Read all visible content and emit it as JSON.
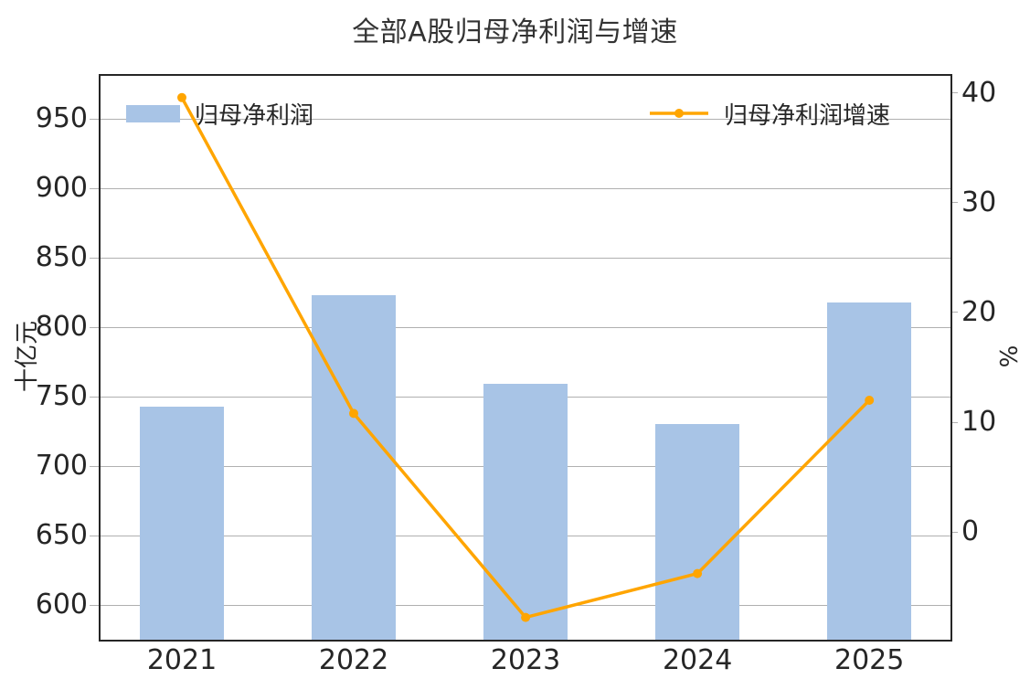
{
  "title": "全部A股归母净利润与增速",
  "chart_data": {
    "type": "bar",
    "subtype": "bar+line combo, dual y-axes",
    "categories": [
      "2021",
      "2022",
      "2023",
      "2024",
      "2025"
    ],
    "series": [
      {
        "name": "归母净利润",
        "type": "bar",
        "axis": "left",
        "unit": "十亿元",
        "values": [
          743,
          823,
          759,
          730,
          818
        ],
        "color": "#a8c4e6"
      },
      {
        "name": "归母净利润增速",
        "type": "line",
        "axis": "right",
        "unit": "%",
        "values": [
          39.6,
          10.8,
          -7.8,
          -3.8,
          12.0
        ],
        "color": "#ffa500"
      }
    ],
    "left_axis": {
      "label": "十亿元",
      "ticks": [
        600,
        650,
        700,
        750,
        800,
        850,
        900,
        950
      ],
      "ylim": [
        575,
        981
      ]
    },
    "right_axis": {
      "label": "%",
      "ticks": [
        0,
        10,
        20,
        30,
        40
      ],
      "ylim": [
        -9.83,
        41.58
      ]
    },
    "xlabel": "",
    "grid": "horizontal gridlines from left axis",
    "legend_position": "inside top: bar legend left, line legend right"
  },
  "colors": {
    "bar": "#a8c4e6",
    "line": "#ffa500",
    "grid": "#b0b0b0",
    "axis_frame": "#262626",
    "text": "#262626",
    "title_text": "#333333",
    "background": "#ffffff"
  }
}
